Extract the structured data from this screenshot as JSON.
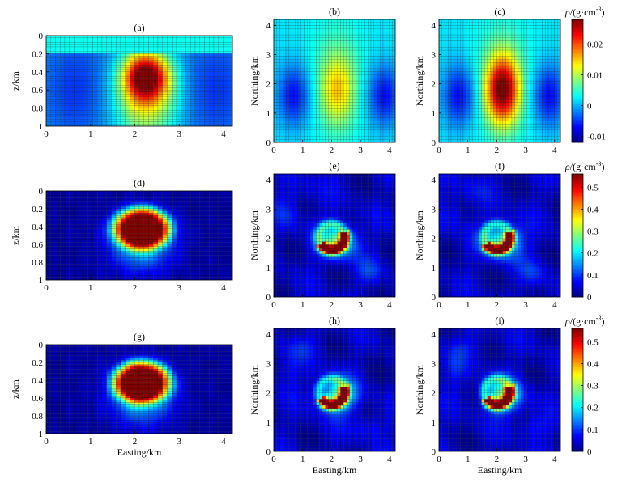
{
  "chart_data": {
    "type": "heatmap",
    "grid": 40,
    "panel_ranges": {
      "section": {
        "xlim": [
          0,
          4.2
        ],
        "ylim": [
          0,
          1
        ]
      },
      "plan": {
        "xlim": [
          0,
          4.2
        ],
        "ylim": [
          0,
          4.2
        ]
      }
    },
    "ticks": {
      "easting": [
        "0",
        "1",
        "2",
        "3",
        "4"
      ],
      "northing": [
        "0",
        "1",
        "2",
        "3",
        "4"
      ],
      "depth": [
        "0",
        "0.2",
        "0.4",
        "0.6",
        "0.8",
        "1"
      ]
    },
    "labels": {
      "depth_axis": "z/km",
      "northing_axis": "Northing/km",
      "easting_axis": "Easting/km"
    },
    "panels": [
      {
        "id": "a",
        "title": "(a)",
        "view": "section",
        "xlabel": "",
        "ylabel": "z/km",
        "colorbar": 0
      },
      {
        "id": "b",
        "title": "(b)",
        "view": "plan",
        "xlabel": "",
        "ylabel": "Northing/km",
        "colorbar": 0
      },
      {
        "id": "c",
        "title": "(c)",
        "view": "plan",
        "xlabel": "",
        "ylabel": "Northing/km",
        "colorbar": 0
      },
      {
        "id": "d",
        "title": "(d)",
        "view": "section",
        "xlabel": "",
        "ylabel": "z/km",
        "colorbar": 1
      },
      {
        "id": "e",
        "title": "(e)",
        "view": "plan",
        "xlabel": "",
        "ylabel": "Northing/km",
        "colorbar": 1
      },
      {
        "id": "f",
        "title": "(f)",
        "view": "plan",
        "xlabel": "",
        "ylabel": "Northing/km",
        "colorbar": 1
      },
      {
        "id": "g",
        "title": "(g)",
        "view": "section",
        "xlabel": "Easting/km",
        "ylabel": "z/km",
        "colorbar": 2
      },
      {
        "id": "h",
        "title": "(h)",
        "view": "plan",
        "xlabel": "Easting/km",
        "ylabel": "Northing/km",
        "colorbar": 2
      },
      {
        "id": "i",
        "title": "(i)",
        "view": "plan",
        "xlabel": "Easting/km",
        "ylabel": "Northing/km",
        "colorbar": 2
      }
    ],
    "colorbars": [
      {
        "label_prefix": "ρ/(g·cm",
        "label_sup": "-3",
        "label_suffix": ")",
        "range": [
          -0.012,
          0.028
        ],
        "ticks": [
          -0.01,
          0,
          0.01,
          0.02
        ],
        "tick_labels": [
          "-0.01",
          "0",
          "0.01",
          "0.02"
        ]
      },
      {
        "label_prefix": "ρ/(g·cm",
        "label_sup": "-3",
        "label_suffix": ")",
        "range": [
          0,
          0.56
        ],
        "ticks": [
          0,
          0.1,
          0.2,
          0.3,
          0.4,
          0.5
        ],
        "tick_labels": [
          "0",
          "0.1",
          "0.2",
          "0.3",
          "0.4",
          "0.5"
        ]
      },
      {
        "label_prefix": "ρ/(g·cm",
        "label_sup": "-3",
        "label_suffix": ")",
        "range": [
          0,
          0.56
        ],
        "ticks": [
          0,
          0.1,
          0.2,
          0.3,
          0.4,
          0.5
        ],
        "tick_labels": [
          "0",
          "0.1",
          "0.2",
          "0.3",
          "0.4",
          "0.5"
        ]
      }
    ],
    "colormap": "jet"
  }
}
